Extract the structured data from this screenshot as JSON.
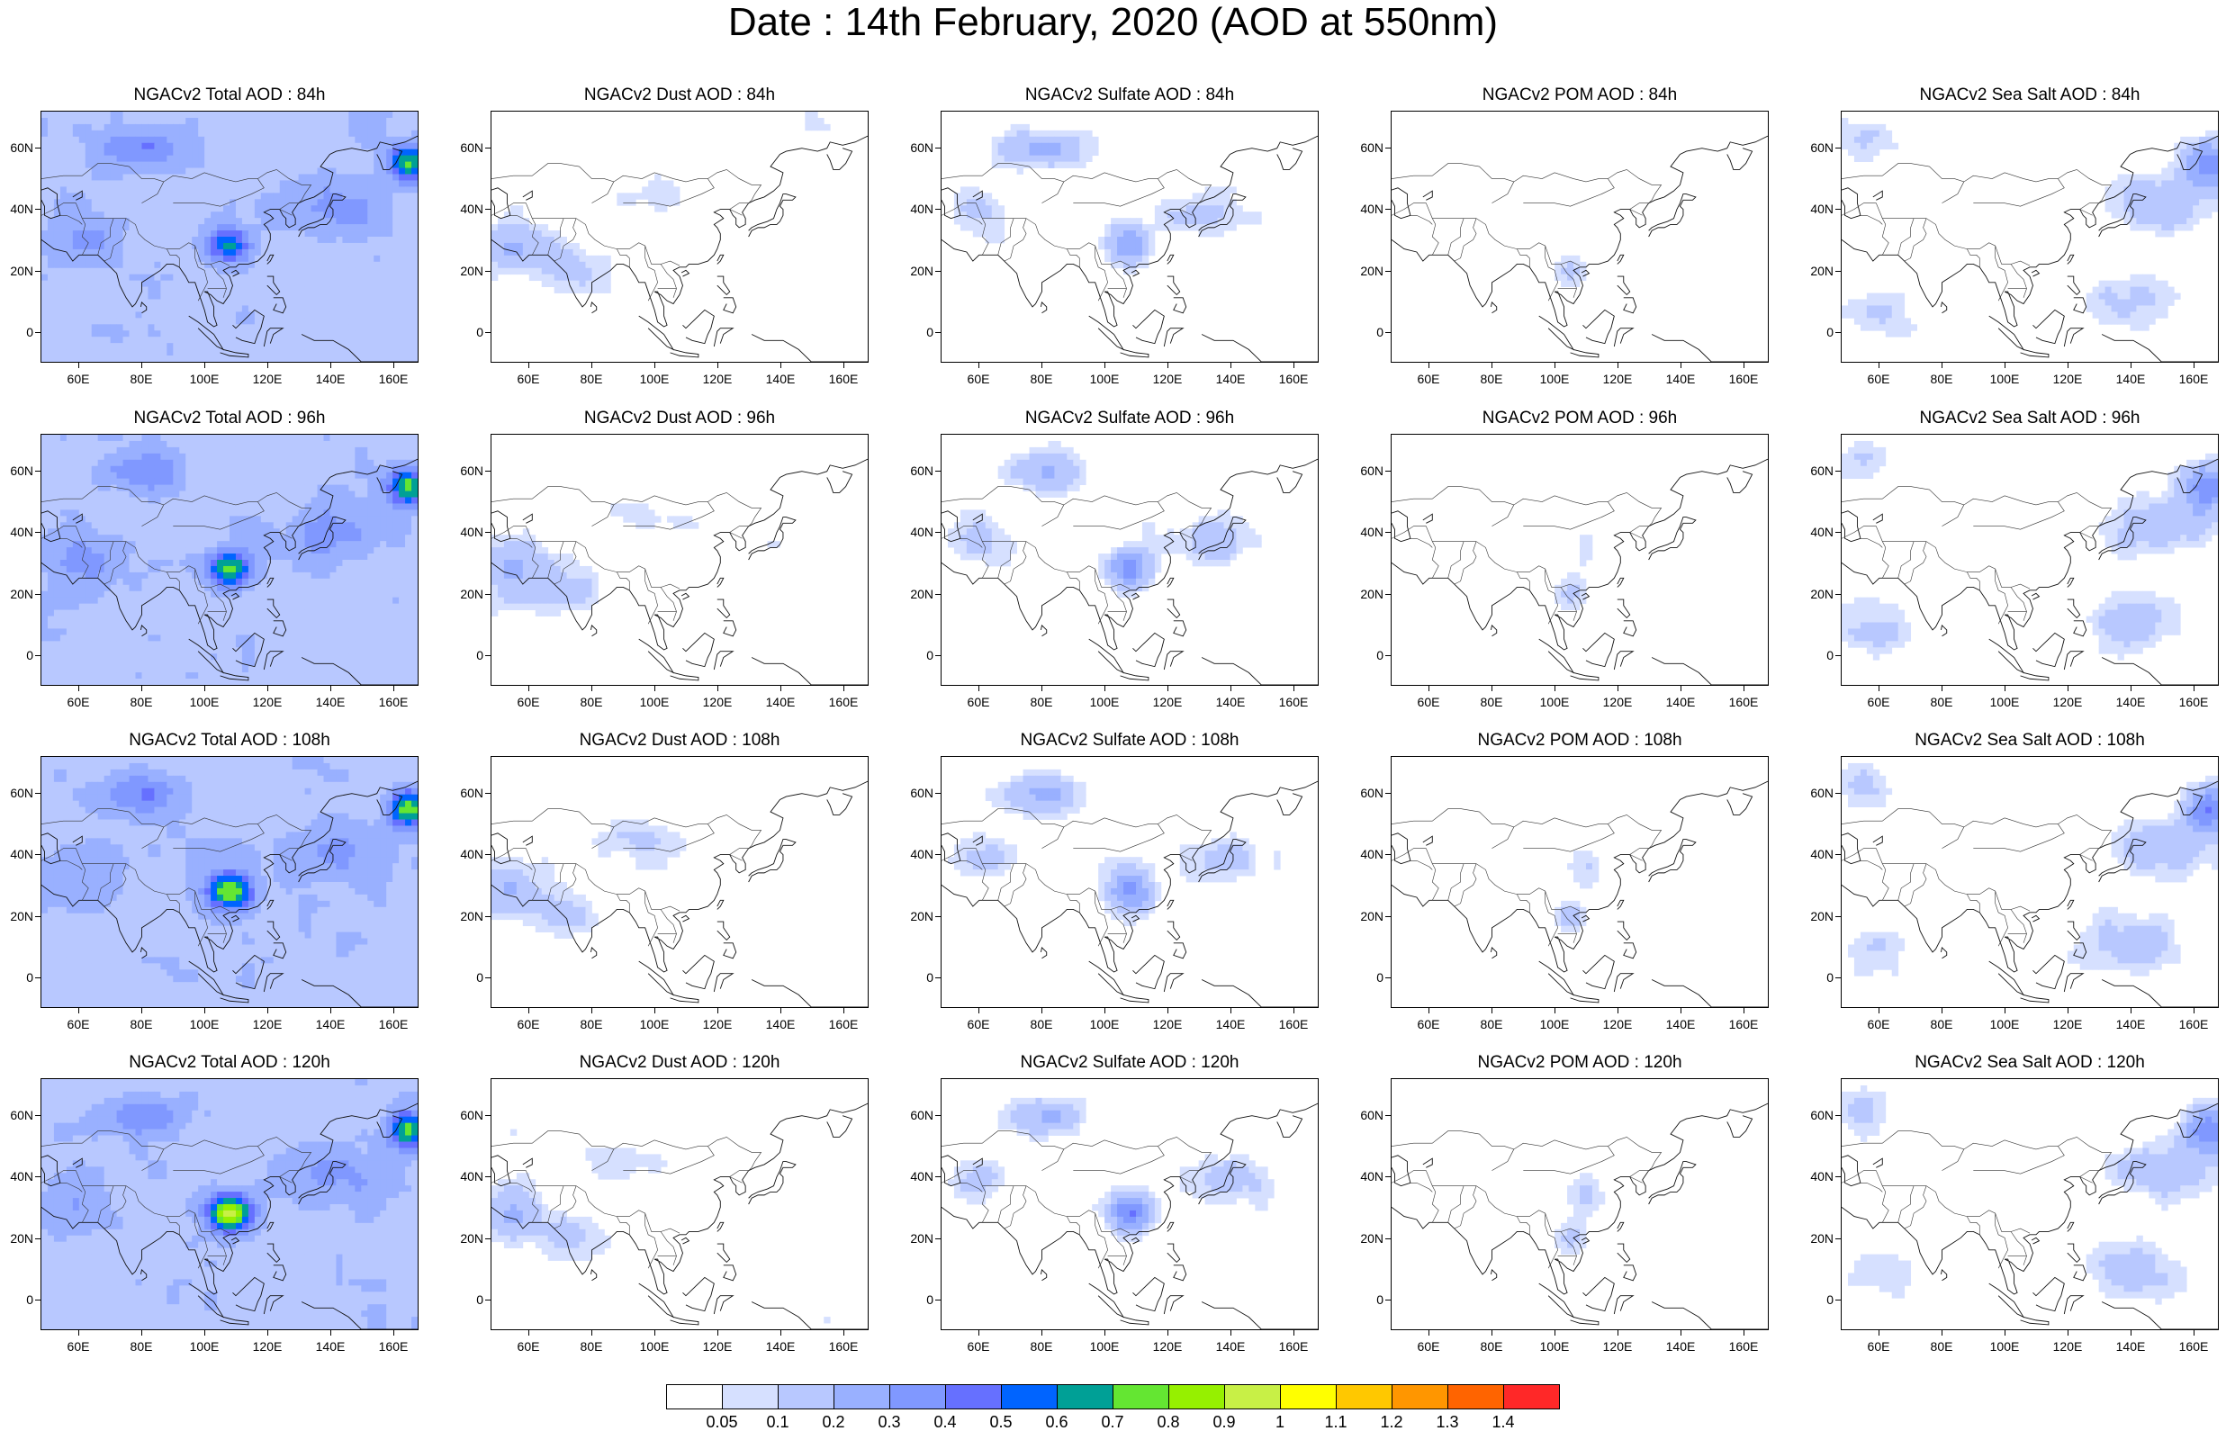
{
  "title": "Date : 14th February, 2020 (AOD at 550nm)",
  "lat_ticks": [
    "60N",
    "40N",
    "20N",
    "0"
  ],
  "lon_ticks": [
    "60E",
    "80E",
    "100E",
    "120E",
    "140E",
    "160E"
  ],
  "rows": [
    {
      "lead": "84h",
      "titles": [
        "NGACv2 Total AOD : 84h",
        "NGACv2 Dust AOD : 84h",
        "NGACv2 Sulfate AOD : 84h",
        "NGACv2 POM AOD : 84h",
        "NGACv2 Sea Salt AOD : 84h"
      ]
    },
    {
      "lead": "96h",
      "titles": [
        "NGACv2 Total AOD : 96h",
        "NGACv2 Dust AOD : 96h",
        "NGACv2 Sulfate AOD : 96h",
        "NGACv2 POM AOD : 96h",
        "NGACv2 Sea Salt AOD : 96h"
      ]
    },
    {
      "lead": "108h",
      "titles": [
        "NGACv2 Total AOD : 108h",
        "NGACv2 Dust AOD : 108h",
        "NGACv2 Sulfate AOD : 108h",
        "NGACv2 POM AOD : 108h",
        "NGACv2 Sea Salt AOD : 108h"
      ]
    },
    {
      "lead": "120h",
      "titles": [
        "NGACv2 Total AOD : 120h",
        "NGACv2 Dust AOD : 120h",
        "NGACv2 Sulfate AOD : 120h",
        "NGACv2 POM AOD : 120h",
        "NGACv2 Sea Salt  AOD : 120h"
      ]
    }
  ],
  "species": [
    "total",
    "dust",
    "sulfate",
    "pom",
    "seasalt"
  ],
  "colorbar": {
    "colors": [
      "#ffffff",
      "#d6e0ff",
      "#b8c8ff",
      "#99b0ff",
      "#8098ff",
      "#6670ff",
      "#0064ff",
      "#00a096",
      "#64e632",
      "#96f000",
      "#c8f046",
      "#ffff00",
      "#ffc800",
      "#ff9600",
      "#ff6400",
      "#ff2828"
    ],
    "labels": [
      "0.05",
      "0.1",
      "0.2",
      "0.3",
      "0.4",
      "0.5",
      "0.6",
      "0.7",
      "0.8",
      "0.9",
      "1",
      "1.1",
      "1.2",
      "1.3",
      "1.4"
    ]
  }
}
